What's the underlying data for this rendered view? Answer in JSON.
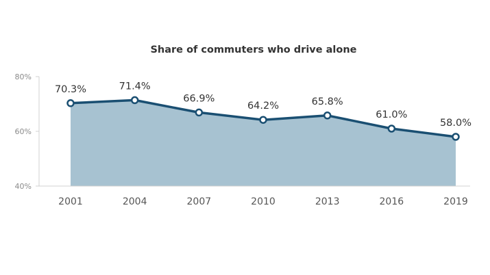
{
  "chart_data": {
    "type": "area",
    "title": "Share of commuters who drive alone",
    "xlabel": "",
    "ylabel": "",
    "categories": [
      "2001",
      "2004",
      "2007",
      "2010",
      "2013",
      "2016",
      "2019"
    ],
    "series": [
      {
        "values": [
          70.3,
          71.4,
          66.9,
          64.2,
          65.8,
          61.0,
          58.0
        ],
        "labels": [
          "70.3%",
          "71.4%",
          "66.9%",
          "64.2%",
          "65.8%",
          "61.0%",
          "58.0%"
        ]
      }
    ],
    "ylim": [
      40,
      80
    ],
    "y_ticks": [
      {
        "value": 80,
        "label": "80%"
      },
      {
        "value": 60,
        "label": "60%"
      },
      {
        "value": 40,
        "label": "40%"
      }
    ],
    "grid": false,
    "legend": "none",
    "colors": {
      "line": "#1a4f72",
      "area": "#a7c2d1",
      "marker_fill": "#ffffff",
      "axis": "#d0d0d0"
    }
  }
}
